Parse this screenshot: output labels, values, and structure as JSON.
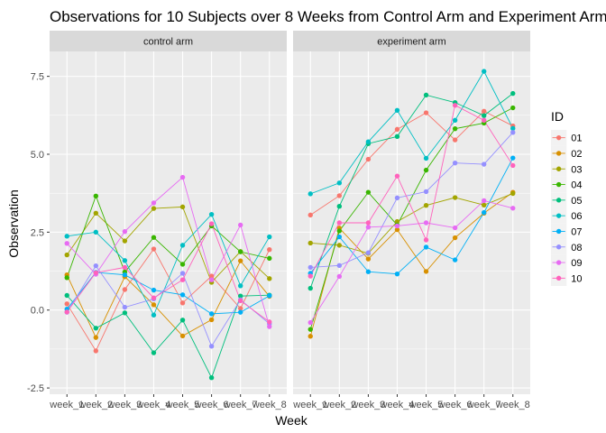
{
  "chart_data": {
    "type": "line",
    "title": "Observations for 10 Subjects over 8 Weeks from Control Arm and Experiment Arm",
    "xlabel": "Week",
    "ylabel": "Observation",
    "categories": [
      "week_1",
      "week_2",
      "week_3",
      "week_4",
      "week_5",
      "week_6",
      "week_7",
      "week_8"
    ],
    "yticks": [
      -2.5,
      0.0,
      2.5,
      5.0,
      7.5
    ],
    "ytick_labels": [
      "-2.5",
      "0.0",
      "2.5",
      "5.0",
      "7.5"
    ],
    "ylim": [
      -2.7,
      8.3
    ],
    "grid": true,
    "legend": {
      "title": "ID",
      "position": "right"
    },
    "colors": {
      "01": "#F8766D",
      "02": "#D89000",
      "03": "#A3A500",
      "04": "#39B600",
      "05": "#00BF7D",
      "06": "#00BFC4",
      "07": "#00B0F6",
      "08": "#9590FF",
      "09": "#E76BF3",
      "10": "#FF62BC"
    },
    "panels": [
      {
        "strip": "control arm",
        "series": [
          {
            "name": "01",
            "values": [
              0.2,
              -1.31,
              0.66,
              1.96,
              0.23,
              1.09,
              0.05,
              1.94
            ]
          },
          {
            "name": "02",
            "values": [
              1.13,
              -0.88,
              1.07,
              0.17,
              -0.83,
              -0.31,
              1.58,
              0.44
            ]
          },
          {
            "name": "03",
            "values": [
              1.77,
              3.11,
              2.22,
              3.26,
              3.31,
              0.89,
              1.88,
              1.01
            ]
          },
          {
            "name": "04",
            "values": [
              1.04,
              3.66,
              1.22,
              2.33,
              1.47,
              2.7,
              1.87,
              1.66
            ]
          },
          {
            "name": "05",
            "values": [
              0.47,
              -0.58,
              -0.09,
              -1.37,
              -0.32,
              -2.17,
              0.45,
              0.48
            ]
          },
          {
            "name": "06",
            "values": [
              2.37,
              2.5,
              1.59,
              -0.16,
              2.08,
              3.07,
              0.78,
              2.35
            ]
          },
          {
            "name": "07",
            "values": [
              0.03,
              1.21,
              1.13,
              0.64,
              0.49,
              -0.12,
              -0.07,
              0.46
            ]
          },
          {
            "name": "08",
            "values": [
              -0.07,
              1.42,
              0.09,
              0.36,
              1.18,
              -1.16,
              0.33,
              -0.44
            ]
          },
          {
            "name": "09",
            "values": [
              2.14,
              1.15,
              2.52,
              3.44,
              4.26,
              0.97,
              2.73,
              -0.53
            ]
          },
          {
            "name": "10",
            "values": [
              -0.06,
              1.2,
              1.37,
              0.39,
              0.97,
              2.77,
              0.3,
              -0.38
            ]
          }
        ]
      },
      {
        "strip": "experiment arm",
        "series": [
          {
            "name": "01",
            "values": [
              3.05,
              3.67,
              4.84,
              5.8,
              6.33,
              5.46,
              6.38,
              5.91
            ]
          },
          {
            "name": "02",
            "values": [
              -0.84,
              2.63,
              1.64,
              2.58,
              1.24,
              2.32,
              3.11,
              3.78
            ]
          },
          {
            "name": "03",
            "values": [
              2.15,
              2.08,
              1.82,
              2.84,
              3.36,
              3.61,
              3.37,
              3.74
            ]
          },
          {
            "name": "04",
            "values": [
              -0.62,
              2.54,
              3.78,
              2.73,
              4.49,
              5.82,
              6.0,
              6.49
            ]
          },
          {
            "name": "05",
            "values": [
              0.7,
              3.33,
              5.34,
              5.57,
              6.9,
              6.66,
              6.24,
              6.95
            ]
          },
          {
            "name": "06",
            "values": [
              3.73,
              4.08,
              5.4,
              6.41,
              4.87,
              6.09,
              7.66,
              5.83
            ]
          },
          {
            "name": "07",
            "values": [
              1.18,
              2.35,
              1.23,
              1.16,
              2.02,
              1.61,
              3.13,
              4.88
            ]
          },
          {
            "name": "08",
            "values": [
              1.37,
              1.43,
              1.84,
              3.6,
              3.8,
              4.72,
              4.68,
              5.7
            ]
          },
          {
            "name": "09",
            "values": [
              -0.4,
              1.08,
              2.66,
              2.7,
              2.8,
              2.64,
              3.51,
              3.27
            ]
          },
          {
            "name": "10",
            "values": [
              1.09,
              2.8,
              2.8,
              4.3,
              2.25,
              6.57,
              6.09,
              4.64
            ]
          }
        ]
      }
    ]
  }
}
